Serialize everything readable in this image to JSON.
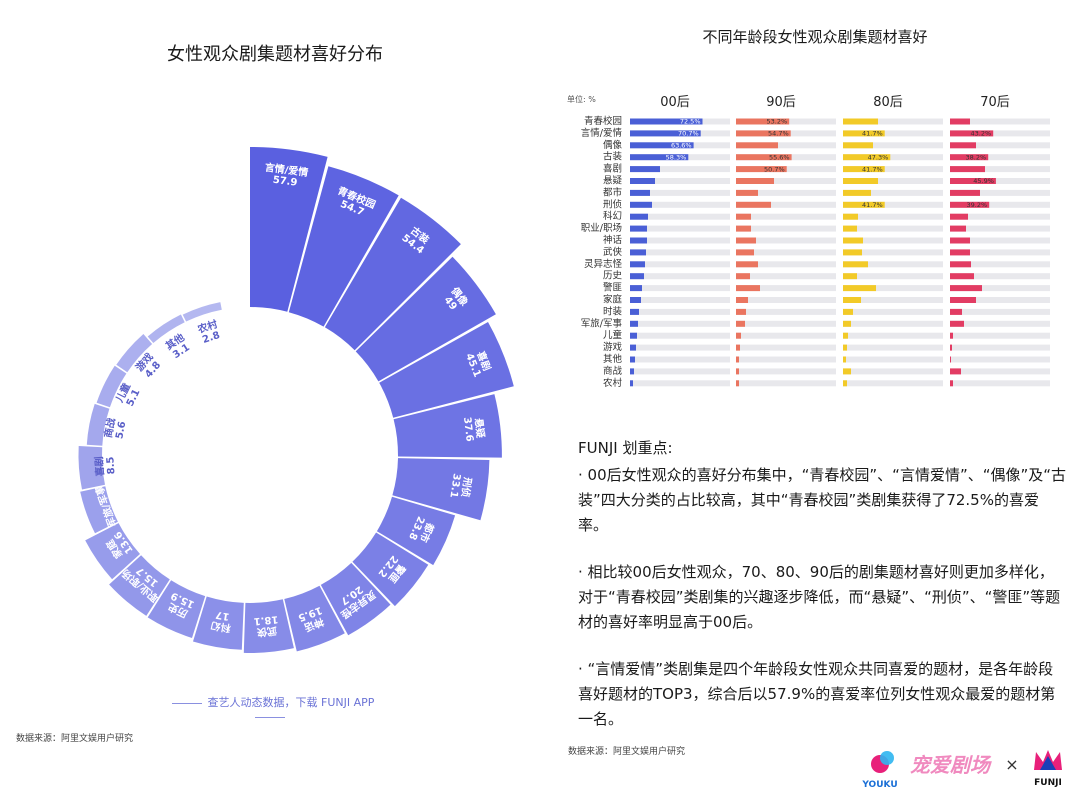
{
  "chart_data": [
    {
      "type": "radial-bar",
      "title": "女性观众剧集题材喜好分布",
      "categories": [
        "言情/爱情",
        "青春校园",
        "古装",
        "偶像",
        "喜剧",
        "悬疑",
        "刑侦",
        "都市",
        "警匪",
        "灵异志怪",
        "神话",
        "武侠",
        "科幻",
        "历史",
        "职业/职场",
        "家庭",
        "军旅/军事",
        "喜剧",
        "商战",
        "儿童",
        "游戏",
        "其他",
        "农村"
      ],
      "values": [
        57.9,
        54.7,
        54.4,
        49,
        45.1,
        37.6,
        33.1,
        23.8,
        22.2,
        20.7,
        19.5,
        18.1,
        17,
        15.9,
        15.7,
        13.6,
        9.3,
        8.5,
        5.6,
        5.1,
        4.8,
        3.1,
        2.8
      ],
      "value_labels": [
        "57.9",
        "54.7",
        "54.4",
        "49",
        "45.1",
        "37.6",
        "33.1",
        "23.8",
        "22.2",
        "20.7",
        "19.5",
        "18.1",
        "17",
        "15.9",
        "15.7",
        "13.6",
        "9.3",
        "8.5",
        "5.6",
        "5.1",
        "4.8",
        "3.1",
        "2.8"
      ]
    },
    {
      "type": "bar",
      "title": "不同年龄段女性观众剧集题材喜好",
      "unit_label": "单位: %",
      "categories": [
        "青春校园",
        "言情/爱情",
        "偶像",
        "古装",
        "喜剧",
        "悬疑",
        "都市",
        "刑侦",
        "科幻",
        "职业/职场",
        "神话",
        "武侠",
        "灵异志怪",
        "历史",
        "警匪",
        "家庭",
        "时装",
        "军旅/军事",
        "儿童",
        "游戏",
        "其他",
        "商战",
        "农村"
      ],
      "series": [
        {
          "name": "00后",
          "color": "#4a5fd6",
          "values": [
            72.5,
            70.7,
            63.6,
            58.3,
            30,
            25,
            20,
            22,
            18,
            17,
            17,
            16,
            15,
            14,
            12,
            11,
            9,
            8,
            7,
            6,
            5,
            4,
            3
          ],
          "labels": {
            "0": "72.5%",
            "1": "70.7%",
            "2": "63.6%",
            "3": "58.3%"
          }
        },
        {
          "name": "90后",
          "color": "#ea7560",
          "values": [
            53.2,
            54.7,
            42,
            55.6,
            50.7,
            38,
            22,
            35,
            15,
            15,
            20,
            18,
            22,
            14,
            24,
            12,
            10,
            9,
            5,
            4,
            3,
            3,
            3
          ],
          "labels": {
            "0": "53.2%",
            "1": "54.7%",
            "3": "55.6%",
            "4": "50.7%"
          }
        },
        {
          "name": "80后",
          "color": "#f2ca28",
          "values": [
            35,
            41.7,
            30,
            47.3,
            41.7,
            35,
            28,
            41.7,
            15,
            14,
            20,
            19,
            25,
            14,
            33,
            18,
            10,
            8,
            5,
            4,
            3,
            8,
            4
          ],
          "labels": {
            "1": "41.7%",
            "3": "47.3%",
            "4": "41.7%",
            "7": "41.7%"
          }
        },
        {
          "name": "70后",
          "color": "#e23c63",
          "values": [
            20,
            43.2,
            26,
            38.2,
            35,
            45.9,
            30,
            39.2,
            18,
            16,
            20,
            20,
            21,
            24,
            32,
            26,
            12,
            14,
            3,
            2,
            1,
            11,
            3
          ],
          "labels": {
            "1": "43.2%",
            "3": "38.2%",
            "5": "45.9%",
            "7": "39.2%"
          }
        }
      ],
      "xlim": [
        0,
        100
      ]
    }
  ],
  "notes": {
    "heading": "FUNJI 划重点:",
    "p1": "· 00后女性观众的喜好分布集中，“青春校园”、“言情爱情”、“偶像”及“古装”四大分类的占比较高，其中“青春校园”类剧集获得了72.5%的喜爱率。",
    "p2": "· 相比较00后女性观众，70、80、90后的剧集题材喜好则更加多样化，对于“青春校园”类剧集的兴趣逐步降低，而“悬疑”、“刑侦”、“警匪”等题材的喜好率明显高于00后。",
    "p3": "· “言情爱情”类剧集是四个年龄段女性观众共同喜爱的题材，是各年龄段喜好题材的TOP3，综合后以57.9%的喜爱率位列女性观众最爱的题材第一名。"
  },
  "footer": {
    "left_source": "数据来源：阿里文娱用户研究",
    "right_source": "数据来源：阿里文娱用户研究",
    "promo": "查艺人动态数据，下载 FUNJI APP",
    "logo_youku": "YOUKU",
    "logo_theatre": "宠爱剧场",
    "logo_cross": "×",
    "logo_funji": "FUNJI"
  },
  "colors": {
    "radial_dark": "#5a60e0",
    "radial_light": "#b4b8f0",
    "track": "#e8e8ec"
  }
}
